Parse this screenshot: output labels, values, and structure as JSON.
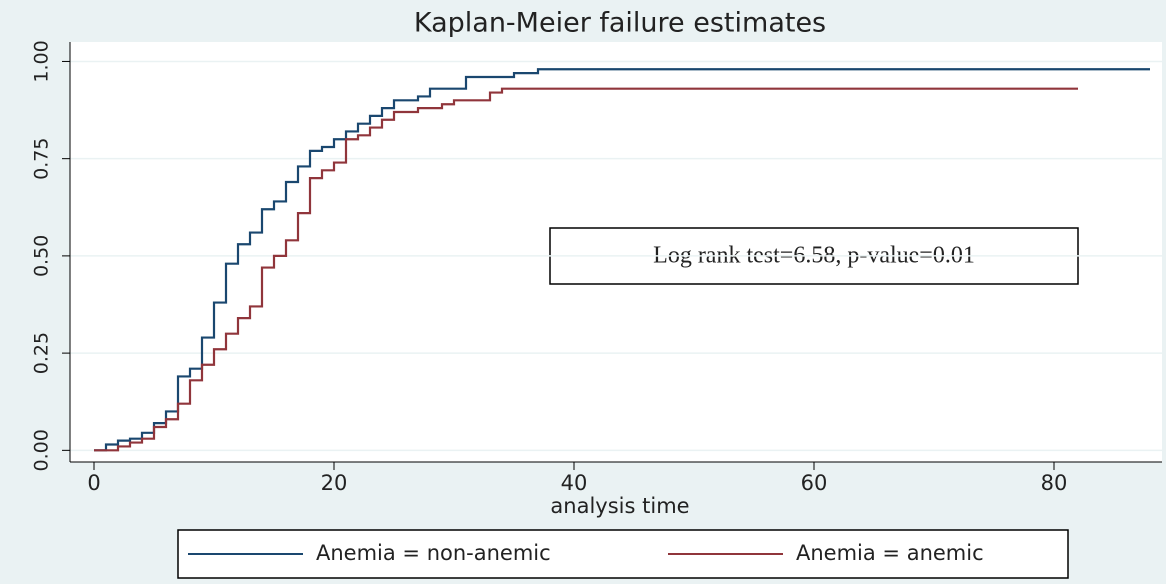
{
  "chart_data": {
    "type": "step",
    "title": "Kaplan-Meier failure estimates",
    "xlabel": "analysis time",
    "annotation": "Log rank test=6.58, p-value=0.01",
    "xlim": [
      -2,
      89
    ],
    "ylim": [
      -0.03,
      1.05
    ],
    "xticks": [
      0,
      20,
      40,
      60,
      80
    ],
    "yticks": [
      {
        "value": 0,
        "label": "0.00"
      },
      0.25,
      {
        "value": 0.5,
        "label": "0.50"
      },
      0.75,
      {
        "value": 1,
        "label": "1.00"
      }
    ],
    "grid": true,
    "legend": "bottom",
    "series": [
      {
        "name": "Anemia = non-anemic",
        "color": "#1a476f",
        "x": [
          0,
          1,
          2,
          3,
          4,
          5,
          6,
          7,
          8,
          9,
          10,
          11,
          12,
          13,
          14,
          15,
          16,
          17,
          18,
          19,
          20,
          21,
          22,
          23,
          24,
          25,
          27,
          28,
          31,
          35,
          37,
          88
        ],
        "values": [
          0,
          0.015,
          0.025,
          0.03,
          0.045,
          0.07,
          0.1,
          0.19,
          0.21,
          0.29,
          0.38,
          0.48,
          0.53,
          0.56,
          0.62,
          0.64,
          0.69,
          0.73,
          0.77,
          0.78,
          0.8,
          0.82,
          0.84,
          0.86,
          0.88,
          0.9,
          0.91,
          0.93,
          0.96,
          0.97,
          0.98,
          0.98
        ]
      },
      {
        "name": "Anemia = anemic",
        "color": "#90353b",
        "x": [
          0,
          2,
          3,
          4,
          5,
          6,
          7,
          8,
          9,
          10,
          11,
          12,
          13,
          14,
          15,
          16,
          17,
          18,
          19,
          20,
          21,
          22,
          23,
          24,
          25,
          27,
          29,
          30,
          33,
          34,
          82
        ],
        "values": [
          0,
          0.01,
          0.02,
          0.03,
          0.06,
          0.08,
          0.12,
          0.18,
          0.22,
          0.26,
          0.3,
          0.34,
          0.37,
          0.47,
          0.5,
          0.54,
          0.61,
          0.7,
          0.72,
          0.74,
          0.8,
          0.81,
          0.83,
          0.85,
          0.87,
          0.88,
          0.89,
          0.9,
          0.92,
          0.93,
          0.93
        ]
      }
    ]
  }
}
